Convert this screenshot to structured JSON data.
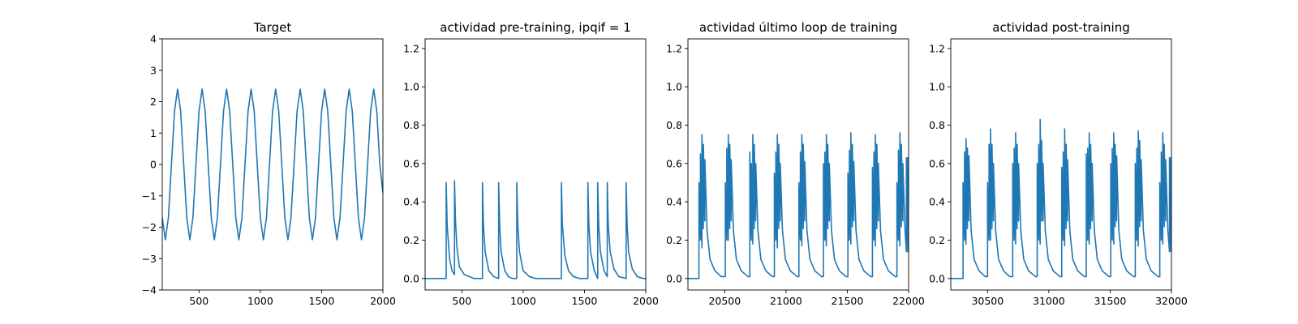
{
  "figure": {
    "background": "#ffffff",
    "line_color": "#1f77b4"
  },
  "chart_data": [
    {
      "type": "line",
      "title": "Target",
      "xlabel": "",
      "ylabel": "",
      "xlim": [
        200,
        2000
      ],
      "ylim": [
        -4,
        4
      ],
      "xticks": [
        500,
        1000,
        1500,
        2000
      ],
      "yticks": [
        -4,
        -3,
        -2,
        -1,
        0,
        1,
        2,
        3,
        4
      ],
      "grid": false,
      "series": [
        {
          "x": [
            200,
            225,
            250,
            275,
            300,
            325,
            350,
            375,
            400,
            425,
            450,
            475,
            500,
            525,
            550,
            575,
            600,
            625,
            650,
            675,
            700,
            725,
            750,
            775,
            800,
            825,
            850,
            875,
            900,
            925,
            950,
            975,
            1000,
            1025,
            1050,
            1075,
            1100,
            1125,
            1150,
            1175,
            1200,
            1225,
            1250,
            1275,
            1300,
            1325,
            1350,
            1375,
            1400,
            1425,
            1450,
            1475,
            1500,
            1525,
            1550,
            1575,
            1600,
            1625,
            1650,
            1675,
            1700,
            1725,
            1750,
            1775,
            1800,
            1825,
            1850,
            1875,
            1900,
            1925,
            1950,
            1975,
            2000
          ],
          "y": [
            -1.7,
            -2.4,
            -1.7,
            0.0,
            1.7,
            2.4,
            1.7,
            0.0,
            -1.7,
            -2.4,
            -1.7,
            0.0,
            1.7,
            2.4,
            1.7,
            0.0,
            -1.7,
            -2.4,
            -1.7,
            0.0,
            1.7,
            2.4,
            1.7,
            0.0,
            -1.7,
            -2.4,
            -1.7,
            0.0,
            1.7,
            2.4,
            1.7,
            0.0,
            -1.7,
            -2.4,
            -1.7,
            0.0,
            1.7,
            2.4,
            1.7,
            0.0,
            -1.7,
            -2.4,
            -1.7,
            0.0,
            1.7,
            2.4,
            1.7,
            0.0,
            -1.7,
            -2.4,
            -1.7,
            0.0,
            1.7,
            2.4,
            1.7,
            0.0,
            -1.7,
            -2.4,
            -1.7,
            0.0,
            1.7,
            2.4,
            1.7,
            0.0,
            -1.7,
            -2.4,
            -1.7,
            0.0,
            1.7,
            2.4,
            1.7,
            0.0,
            -0.9
          ]
        }
      ]
    },
    {
      "type": "line",
      "title": "actividad pre-training, ipqif = 1",
      "xlabel": "",
      "ylabel": "",
      "xlim": [
        200,
        2000
      ],
      "ylim": [
        -0.06,
        1.25
      ],
      "xticks": [
        500,
        1000,
        1500,
        2000
      ],
      "yticks": [
        0.0,
        0.2,
        0.4,
        0.6,
        0.8,
        1.0,
        1.2
      ],
      "grid": false,
      "series": [
        {
          "x": [
            200,
            372,
            372,
            380,
            400,
            420,
            440,
            440,
            448,
            460,
            480,
            520,
            560,
            600,
            668,
            668,
            676,
            690,
            720,
            760,
            800,
            800,
            808,
            820,
            850,
            880,
            910,
            948,
            948,
            956,
            970,
            1000,
            1050,
            1100,
            1200,
            1300,
            1312,
            1312,
            1320,
            1340,
            1370,
            1410,
            1460,
            1520,
            1528,
            1528,
            1536,
            1550,
            1580,
            1608,
            1608,
            1616,
            1630,
            1660,
            1686,
            1686,
            1694,
            1710,
            1740,
            1780,
            1840,
            1840,
            1848,
            1860,
            1890,
            1930,
            1980,
            2000
          ],
          "y": [
            0.0,
            0.0,
            0.5,
            0.28,
            0.1,
            0.04,
            0.02,
            0.51,
            0.3,
            0.16,
            0.06,
            0.02,
            0.01,
            0.0,
            0.0,
            0.5,
            0.28,
            0.14,
            0.04,
            0.01,
            0.0,
            0.5,
            0.28,
            0.14,
            0.04,
            0.01,
            0.0,
            0.0,
            0.5,
            0.28,
            0.14,
            0.04,
            0.01,
            0.0,
            0.0,
            0.0,
            0.0,
            0.5,
            0.28,
            0.12,
            0.04,
            0.01,
            0.0,
            0.0,
            0.0,
            0.5,
            0.28,
            0.14,
            0.04,
            0.0,
            0.5,
            0.28,
            0.14,
            0.04,
            0.01,
            0.5,
            0.28,
            0.14,
            0.05,
            0.01,
            0.0,
            0.5,
            0.28,
            0.14,
            0.05,
            0.01,
            0.0,
            0.0
          ]
        }
      ]
    },
    {
      "type": "line",
      "title": "actividad último loop de training",
      "xlabel": "",
      "ylabel": "",
      "xlim": [
        20200,
        22000
      ],
      "ylim": [
        -0.06,
        1.25
      ],
      "xticks": [
        20500,
        21000,
        21500,
        22000
      ],
      "yticks": [
        0.0,
        0.2,
        0.4,
        0.6,
        0.8,
        1.0,
        1.2
      ],
      "grid": false,
      "series": [
        {
          "x": [
            20200,
            20290,
            20290,
            20302,
            20302,
            20314,
            20314,
            20326,
            20326,
            20338,
            20338,
            20356,
            20380,
            20420,
            20470,
            20505,
            20505,
            20517,
            20517,
            20529,
            20529,
            20541,
            20541,
            20553,
            20553,
            20571,
            20595,
            20635,
            20690,
            20705,
            20705,
            20717,
            20717,
            20729,
            20729,
            20741,
            20741,
            20753,
            20753,
            20771,
            20795,
            20835,
            20890,
            20905,
            20905,
            20917,
            20917,
            20929,
            20929,
            20941,
            20941,
            20953,
            20953,
            20971,
            20995,
            21035,
            21090,
            21105,
            21105,
            21117,
            21117,
            21129,
            21129,
            21141,
            21141,
            21153,
            21153,
            21171,
            21195,
            21235,
            21290,
            21305,
            21305,
            21317,
            21317,
            21329,
            21329,
            21341,
            21341,
            21353,
            21353,
            21371,
            21395,
            21435,
            21490,
            21505,
            21505,
            21517,
            21517,
            21529,
            21529,
            21541,
            21541,
            21553,
            21553,
            21571,
            21595,
            21635,
            21690,
            21705,
            21705,
            21717,
            21717,
            21729,
            21729,
            21741,
            21741,
            21753,
            21753,
            21771,
            21795,
            21835,
            21890,
            21905,
            21905,
            21917,
            21917,
            21929,
            21929,
            21941,
            21941,
            21953,
            21953,
            21971,
            21982,
            21982,
            21994,
            21994,
            22000
          ],
          "y": [
            0.0,
            0.0,
            0.5,
            0.2,
            0.65,
            0.16,
            0.75,
            0.26,
            0.7,
            0.3,
            0.62,
            0.25,
            0.1,
            0.04,
            0.01,
            0.01,
            0.5,
            0.2,
            0.68,
            0.2,
            0.75,
            0.26,
            0.7,
            0.3,
            0.62,
            0.25,
            0.1,
            0.04,
            0.01,
            0.01,
            0.66,
            0.2,
            0.6,
            0.18,
            0.75,
            0.26,
            0.7,
            0.3,
            0.6,
            0.25,
            0.1,
            0.04,
            0.01,
            0.01,
            0.55,
            0.2,
            0.66,
            0.16,
            0.75,
            0.26,
            0.7,
            0.3,
            0.6,
            0.25,
            0.1,
            0.04,
            0.01,
            0.01,
            0.5,
            0.2,
            0.66,
            0.17,
            0.75,
            0.26,
            0.7,
            0.3,
            0.61,
            0.25,
            0.1,
            0.04,
            0.01,
            0.01,
            0.6,
            0.2,
            0.66,
            0.17,
            0.75,
            0.26,
            0.7,
            0.3,
            0.6,
            0.25,
            0.1,
            0.04,
            0.01,
            0.01,
            0.55,
            0.2,
            0.67,
            0.18,
            0.76,
            0.27,
            0.7,
            0.3,
            0.61,
            0.25,
            0.1,
            0.04,
            0.01,
            0.01,
            0.58,
            0.2,
            0.66,
            0.17,
            0.75,
            0.26,
            0.7,
            0.3,
            0.6,
            0.25,
            0.1,
            0.04,
            0.01,
            0.01,
            0.5,
            0.2,
            0.67,
            0.17,
            0.76,
            0.27,
            0.7,
            0.3,
            0.6,
            0.25,
            0.14,
            0.63,
            0.14,
            0.63,
            0.14
          ]
        }
      ]
    },
    {
      "type": "line",
      "title": "actividad post-training",
      "xlabel": "",
      "ylabel": "",
      "xlim": [
        30200,
        32000
      ],
      "ylim": [
        -0.06,
        1.25
      ],
      "xticks": [
        30500,
        31000,
        31500,
        32000
      ],
      "yticks": [
        0.0,
        0.2,
        0.4,
        0.6,
        0.8,
        1.0,
        1.2
      ],
      "grid": false,
      "series": [
        {
          "x": [
            30200,
            30300,
            30300,
            30312,
            30312,
            30324,
            30324,
            30336,
            30336,
            30348,
            30348,
            30366,
            30390,
            30430,
            30480,
            30500,
            30500,
            30512,
            30512,
            30524,
            30524,
            30536,
            30536,
            30548,
            30548,
            30566,
            30590,
            30630,
            30680,
            30705,
            30705,
            30717,
            30717,
            30729,
            30729,
            30741,
            30741,
            30753,
            30753,
            30771,
            30795,
            30835,
            30890,
            30905,
            30905,
            30917,
            30917,
            30929,
            30929,
            30941,
            30941,
            30953,
            30953,
            30971,
            30995,
            31035,
            31090,
            31105,
            31105,
            31117,
            31117,
            31129,
            31129,
            31141,
            31141,
            31153,
            31153,
            31171,
            31195,
            31235,
            31290,
            31305,
            31305,
            31317,
            31317,
            31329,
            31329,
            31341,
            31341,
            31353,
            31353,
            31371,
            31395,
            31435,
            31490,
            31505,
            31505,
            31517,
            31517,
            31529,
            31529,
            31541,
            31541,
            31553,
            31553,
            31571,
            31595,
            31635,
            31690,
            31705,
            31705,
            31717,
            31717,
            31729,
            31729,
            31741,
            31741,
            31753,
            31753,
            31771,
            31795,
            31835,
            31890,
            31905,
            31905,
            31917,
            31917,
            31929,
            31929,
            31941,
            31941,
            31953,
            31953,
            31971,
            31984,
            31984,
            31996,
            31996,
            32000
          ],
          "y": [
            0.0,
            0.0,
            0.5,
            0.2,
            0.66,
            0.18,
            0.73,
            0.26,
            0.68,
            0.3,
            0.64,
            0.25,
            0.1,
            0.04,
            0.01,
            0.01,
            0.5,
            0.2,
            0.7,
            0.2,
            0.78,
            0.26,
            0.7,
            0.3,
            0.6,
            0.25,
            0.1,
            0.04,
            0.01,
            0.01,
            0.6,
            0.2,
            0.68,
            0.18,
            0.76,
            0.26,
            0.7,
            0.3,
            0.6,
            0.25,
            0.1,
            0.04,
            0.01,
            0.01,
            0.6,
            0.2,
            0.7,
            0.18,
            0.83,
            0.3,
            0.72,
            0.3,
            0.6,
            0.25,
            0.1,
            0.04,
            0.01,
            0.01,
            0.58,
            0.2,
            0.66,
            0.17,
            0.78,
            0.26,
            0.7,
            0.3,
            0.62,
            0.25,
            0.1,
            0.04,
            0.01,
            0.01,
            0.65,
            0.2,
            0.68,
            0.18,
            0.76,
            0.26,
            0.7,
            0.3,
            0.6,
            0.25,
            0.1,
            0.04,
            0.01,
            0.01,
            0.6,
            0.2,
            0.68,
            0.18,
            0.76,
            0.27,
            0.7,
            0.3,
            0.64,
            0.25,
            0.1,
            0.04,
            0.01,
            0.01,
            0.6,
            0.2,
            0.68,
            0.17,
            0.77,
            0.27,
            0.72,
            0.3,
            0.62,
            0.25,
            0.1,
            0.04,
            0.01,
            0.01,
            0.5,
            0.2,
            0.66,
            0.18,
            0.76,
            0.27,
            0.7,
            0.3,
            0.62,
            0.25,
            0.14,
            0.63,
            0.14,
            0.63,
            0.14
          ]
        }
      ]
    }
  ]
}
